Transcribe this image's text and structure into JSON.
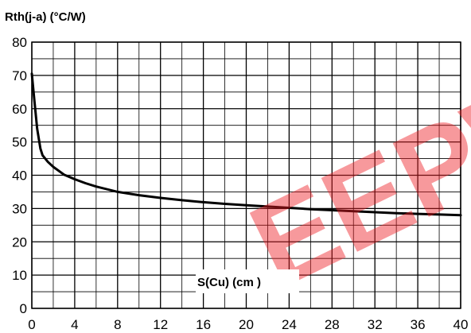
{
  "chart_data": {
    "type": "line",
    "ylabel": "Rth(j-a) (°C/W)",
    "xlabel": "S(Cu) (cm )",
    "xlim": [
      0,
      40
    ],
    "ylim": [
      0,
      80
    ],
    "x_ticks": [
      "0",
      "4",
      "8",
      "12",
      "16",
      "20",
      "24",
      "28",
      "32",
      "36",
      "40"
    ],
    "y_ticks": [
      "0",
      "10",
      "20",
      "30",
      "40",
      "50",
      "60",
      "70",
      "80"
    ],
    "grid": true,
    "series": [
      {
        "x": [
          0,
          0.25,
          0.5,
          0.8,
          1,
          1.5,
          2,
          3,
          4,
          5,
          6,
          8,
          10,
          12,
          14,
          16,
          18,
          20,
          22,
          24,
          26,
          28,
          30,
          32,
          34,
          36,
          38,
          40
        ],
        "y": [
          70.5,
          62,
          54,
          48,
          46,
          44,
          42.5,
          40.2,
          38.8,
          37.6,
          36.6,
          35,
          34,
          33.2,
          32.5,
          31.9,
          31.4,
          31,
          30.6,
          30.2,
          29.8,
          29.5,
          29.2,
          28.9,
          28.6,
          28.4,
          28.2,
          28
        ]
      }
    ],
    "colors": {
      "line": "#000000",
      "grid": "#000000",
      "watermark": "#ee1c24"
    }
  },
  "watermark": {
    "text": "EEPW"
  }
}
